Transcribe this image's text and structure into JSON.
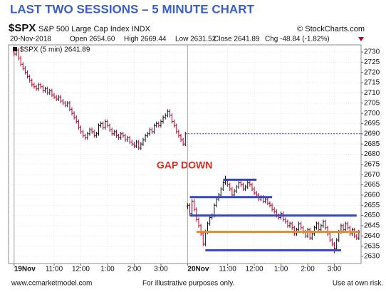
{
  "chart_data": {
    "type": "ohlc",
    "title": "LAST TWO SESSIONS – 5 MINUTE CHART",
    "header": {
      "symbol": "$SPX",
      "name": "S&P 500 Large Cap Index INDX",
      "copyright": "© StockCharts.com",
      "date": "20-Nov-2018",
      "open": "Open 2654.60",
      "high": "High 2669.44",
      "low": "Low 2631.52",
      "close": "Close 2641.89",
      "chg": "Chg -48.84 (-1.82%)"
    },
    "annotation": "GAP DOWN",
    "footer": {
      "left": "www.ccmarketmodel.com",
      "center": "For illustrative purposes only.",
      "right": "Use at own risk."
    },
    "up_color": "#111111",
    "down_color": "#b3002a",
    "series": [
      {
        "name": "$SPX (5 min) 2641.89",
        "open": [
          2730,
          2729,
          2731,
          2727,
          2724,
          2722,
          2720,
          2718,
          2716,
          2714,
          2713,
          2712,
          2714,
          2713,
          2711,
          2712,
          2710,
          2711,
          2709,
          2708,
          2707,
          2708,
          2706,
          2705,
          2704,
          2705,
          2702,
          2700,
          2698,
          2696,
          2693,
          2691,
          2689,
          2688,
          2690,
          2692,
          2691,
          2689,
          2690,
          2694,
          2695,
          2693,
          2696,
          2694,
          2692,
          2690,
          2691,
          2689,
          2688,
          2690,
          2689,
          2687,
          2688,
          2686,
          2685,
          2684,
          2686,
          2683,
          2685,
          2687,
          2689,
          2690,
          2692,
          2691,
          2694,
          2695,
          2694,
          2696,
          2698,
          2699,
          2701,
          2699,
          2696,
          2694,
          2691,
          2689,
          2687,
          2685,
          2654.6,
          2655,
          2651,
          2657,
          2653,
          2648,
          2645,
          2641,
          2636,
          2642,
          2646,
          2649,
          2650,
          2655,
          2658,
          2660,
          2663,
          2666,
          2667,
          2665,
          2663,
          2660,
          2662,
          2664,
          2666,
          2665,
          2663,
          2664,
          2666,
          2665,
          2663,
          2661,
          2660,
          2658,
          2659,
          2657,
          2658,
          2656,
          2655,
          2653,
          2652,
          2650,
          2649,
          2651,
          2648,
          2647,
          2645,
          2646,
          2644,
          2641,
          2643,
          2646,
          2644,
          2642,
          2640,
          2643,
          2639,
          2641,
          2644,
          2646,
          2643,
          2645,
          2647,
          2644,
          2641,
          2638,
          2636,
          2634,
          2638,
          2642,
          2645,
          2643,
          2646,
          2644,
          2641,
          2643,
          2640,
          2639
        ],
        "high": [
          2731,
          2732,
          2732,
          2728,
          2725,
          2723,
          2721,
          2719,
          2717,
          2715,
          2714,
          2715,
          2715,
          2714,
          2713,
          2713,
          2712,
          2712,
          2710,
          2709,
          2709,
          2709,
          2707,
          2706,
          2706,
          2706,
          2703,
          2701,
          2699,
          2697,
          2694,
          2692,
          2690,
          2691,
          2693,
          2693,
          2692,
          2691,
          2695,
          2696,
          2696,
          2697,
          2697,
          2695,
          2693,
          2692,
          2692,
          2690,
          2691,
          2691,
          2690,
          2689,
          2689,
          2687,
          2686,
          2687,
          2687,
          2686,
          2688,
          2690,
          2691,
          2693,
          2693,
          2695,
          2696,
          2696,
          2697,
          2699,
          2700,
          2702,
          2702,
          2700,
          2697,
          2695,
          2692,
          2690,
          2688,
          2691,
          2656,
          2656,
          2658,
          2658,
          2654,
          2649,
          2646,
          2642,
          2643,
          2647,
          2650,
          2651,
          2656,
          2659,
          2661,
          2664,
          2667,
          2669.44,
          2668,
          2666,
          2664,
          2663,
          2665,
          2667,
          2667,
          2666,
          2665,
          2667,
          2667,
          2666,
          2664,
          2662,
          2661,
          2660,
          2660,
          2659,
          2659,
          2657,
          2656,
          2654,
          2653,
          2651,
          2652,
          2652,
          2649,
          2648,
          2647,
          2647,
          2645,
          2644,
          2647,
          2647,
          2645,
          2643,
          2644,
          2644,
          2642,
          2645,
          2647,
          2647,
          2646,
          2648,
          2648,
          2645,
          2642,
          2639,
          2637,
          2639,
          2643,
          2646,
          2646,
          2647,
          2647,
          2645,
          2644,
          2644,
          2641,
          2643
        ],
        "low": [
          2728,
          2728,
          2726,
          2723,
          2721,
          2719,
          2717,
          2715,
          2713,
          2712,
          2711,
          2711,
          2712,
          2710,
          2710,
          2709,
          2709,
          2708,
          2707,
          2706,
          2706,
          2705,
          2704,
          2703,
          2703,
          2701,
          2699,
          2697,
          2695,
          2692,
          2690,
          2688,
          2687,
          2687,
          2689,
          2690,
          2688,
          2688,
          2689,
          2693,
          2692,
          2692,
          2693,
          2691,
          2689,
          2689,
          2688,
          2687,
          2687,
          2688,
          2686,
          2686,
          2685,
          2684,
          2683,
          2683,
          2682,
          2682,
          2684,
          2686,
          2688,
          2689,
          2690,
          2690,
          2693,
          2693,
          2693,
          2695,
          2697,
          2698,
          2698,
          2695,
          2693,
          2690,
          2688,
          2686,
          2684,
          2684,
          2653,
          2650,
          2650,
          2652,
          2647,
          2644,
          2640,
          2635,
          2635,
          2641,
          2645,
          2648,
          2649,
          2654,
          2657,
          2659,
          2662,
          2665,
          2664,
          2662,
          2659,
          2659,
          2661,
          2663,
          2664,
          2662,
          2662,
          2663,
          2664,
          2662,
          2660,
          2659,
          2657,
          2657,
          2656,
          2656,
          2655,
          2654,
          2652,
          2651,
          2649,
          2648,
          2648,
          2647,
          2646,
          2644,
          2644,
          2643,
          2640,
          2640,
          2642,
          2643,
          2641,
          2639,
          2639,
          2638,
          2638,
          2640,
          2643,
          2642,
          2642,
          2644,
          2643,
          2640,
          2637,
          2635,
          2631.52,
          2633,
          2637,
          2641,
          2642,
          2642,
          2643,
          2640,
          2640,
          2639,
          2638,
          2638
        ],
        "close": [
          2729,
          2731,
          2727,
          2724,
          2722,
          2720,
          2718,
          2716,
          2714,
          2713,
          2712,
          2714,
          2713,
          2711,
          2712,
          2710,
          2711,
          2709,
          2708,
          2707,
          2708,
          2706,
          2705,
          2704,
          2705,
          2702,
          2700,
          2698,
          2696,
          2693,
          2691,
          2689,
          2688,
          2690,
          2692,
          2691,
          2689,
          2690,
          2694,
          2695,
          2693,
          2696,
          2694,
          2692,
          2690,
          2691,
          2689,
          2688,
          2690,
          2689,
          2687,
          2688,
          2686,
          2685,
          2684,
          2686,
          2683,
          2685,
          2687,
          2689,
          2690,
          2692,
          2691,
          2694,
          2695,
          2694,
          2696,
          2698,
          2699,
          2701,
          2699,
          2696,
          2694,
          2691,
          2689,
          2687,
          2685,
          2690,
          2655,
          2651,
          2657,
          2653,
          2648,
          2645,
          2641,
          2636,
          2642,
          2646,
          2649,
          2650,
          2655,
          2658,
          2660,
          2663,
          2666,
          2667,
          2665,
          2663,
          2660,
          2662,
          2664,
          2666,
          2665,
          2663,
          2664,
          2666,
          2665,
          2663,
          2661,
          2660,
          2658,
          2659,
          2657,
          2658,
          2656,
          2655,
          2653,
          2652,
          2650,
          2649,
          2651,
          2648,
          2647,
          2645,
          2646,
          2644,
          2641,
          2643,
          2646,
          2644,
          2642,
          2640,
          2643,
          2639,
          2641,
          2644,
          2646,
          2643,
          2645,
          2647,
          2644,
          2641,
          2638,
          2636,
          2634,
          2638,
          2642,
          2645,
          2643,
          2646,
          2644,
          2641,
          2643,
          2640,
          2639,
          2641.89
        ]
      }
    ],
    "lines": [
      {
        "value": 2690,
        "xrange": [
          77,
          156
        ],
        "color": "#2233cc",
        "style": "dotted"
      },
      {
        "value": 2667.5,
        "xrange": [
          94,
          109
        ],
        "color": "#3344cc",
        "style": "solid"
      },
      {
        "value": 2659,
        "xrange": [
          79,
          116
        ],
        "color": "#3344cc",
        "style": "solid"
      },
      {
        "value": 2650,
        "xrange": [
          79,
          154
        ],
        "color": "#3344cc",
        "style": "solid"
      },
      {
        "value": 2642,
        "xrange": [
          82,
          155
        ],
        "color": "#f08a24",
        "style": "solid"
      },
      {
        "value": 2633,
        "xrange": [
          86,
          147
        ],
        "color": "#3344cc",
        "style": "solid"
      }
    ],
    "xlim": [
      -2.5,
      156
    ],
    "xticks": [
      {
        "value": 0,
        "label": "19Nov"
      },
      {
        "value": 18,
        "label": "11:00"
      },
      {
        "value": 30,
        "label": "12:00"
      },
      {
        "value": 42,
        "label": "1:00"
      },
      {
        "value": 54,
        "label": "2:00"
      },
      {
        "value": 66,
        "label": "3:00"
      },
      {
        "value": 78,
        "label": "20Nov"
      },
      {
        "value": 96,
        "label": "11:00"
      },
      {
        "value": 108,
        "label": "12:00"
      },
      {
        "value": 120,
        "label": "1:00"
      },
      {
        "value": 132,
        "label": "2:00"
      },
      {
        "value": 144,
        "label": "3:00"
      }
    ],
    "ylim": [
      2626.5,
      2733.5
    ],
    "yticks": [
      2630,
      2635,
      2640,
      2645,
      2650,
      2655,
      2660,
      2665,
      2670,
      2675,
      2680,
      2685,
      2690,
      2695,
      2700,
      2705,
      2710,
      2715,
      2720,
      2725,
      2730
    ],
    "grid": true
  }
}
